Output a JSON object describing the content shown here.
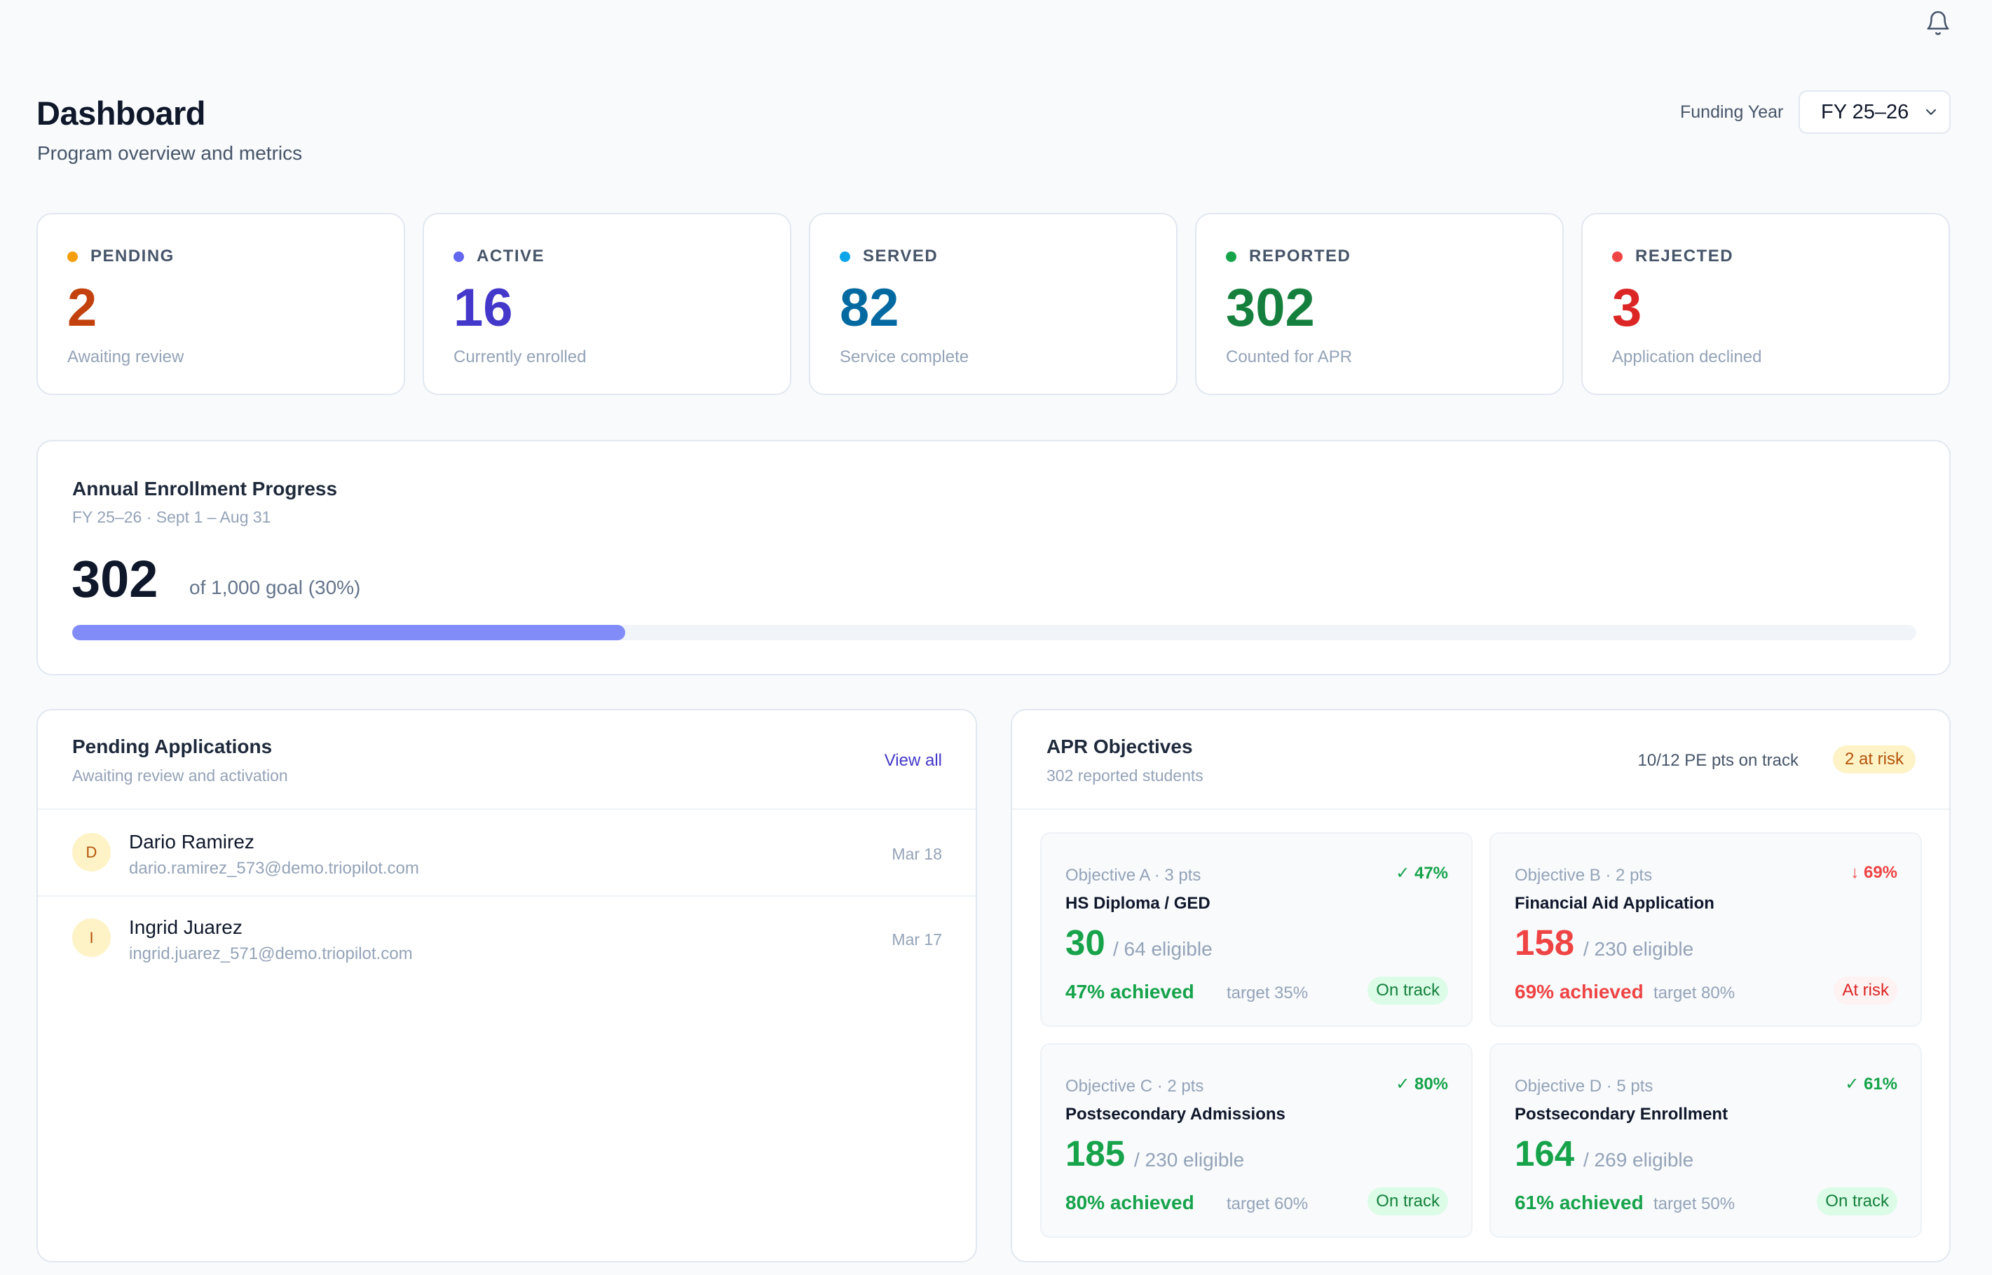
{
  "header": {
    "title": "Dashboard",
    "subtitle": "Program overview and metrics",
    "funding_year_label": "Funding Year",
    "funding_year_value": "FY 25–26",
    "icons": {
      "notifications": "bell-icon",
      "select_arrow": "chevron-down-icon"
    }
  },
  "stats": [
    {
      "label": "PENDING",
      "value": "2",
      "sub": "Awaiting review",
      "dot_color": "#f59e0b",
      "value_color": "#c2410c"
    },
    {
      "label": "ACTIVE",
      "value": "16",
      "sub": "Currently enrolled",
      "dot_color": "#6366f1",
      "value_color": "#4338ca"
    },
    {
      "label": "SERVED",
      "value": "82",
      "sub": "Service complete",
      "dot_color": "#0ea5e9",
      "value_color": "#0369a1"
    },
    {
      "label": "REPORTED",
      "value": "302",
      "sub": "Counted for APR",
      "dot_color": "#16a34a",
      "value_color": "#15803d"
    },
    {
      "label": "REJECTED",
      "value": "3",
      "sub": "Application declined",
      "dot_color": "#ef4444",
      "value_color": "#dc2626"
    }
  ],
  "progress": {
    "title": "Annual Enrollment Progress",
    "subtitle": "FY 25–26 · Sept 1 – Aug 31",
    "value": "302",
    "goal_text": "of 1,000 goal (30%)",
    "percent": 30,
    "bar_color": "#818cf8"
  },
  "pending": {
    "title": "Pending Applications",
    "subtitle": "Awaiting review and activation",
    "view_all": "View all",
    "rows": [
      {
        "initial": "D",
        "name": "Dario Ramirez",
        "email": "dario.ramirez_573@demo.triopilot.com",
        "date": "Mar 18"
      },
      {
        "initial": "I",
        "name": "Ingrid Juarez",
        "email": "ingrid.juarez_571@demo.triopilot.com",
        "date": "Mar 17"
      }
    ]
  },
  "apr": {
    "title": "APR Objectives",
    "subtitle": "302 reported students",
    "summary": "10/12 PE pts on track",
    "risk_badge": "2 at risk",
    "objectives": [
      {
        "header": "Objective A · 3 pts",
        "pct": "✓ 47%",
        "name": "HS Diploma / GED",
        "count": "30",
        "eligible": "/ 64 eligible",
        "achieved": "47% achieved",
        "sep": "·",
        "target": "target 35%",
        "status": "On track",
        "status_type": "good"
      },
      {
        "header": "Objective B · 2 pts",
        "pct": "↓ 69%",
        "name": "Financial Aid Application",
        "count": "158",
        "eligible": "/ 230 eligible",
        "achieved": "69% achieved",
        "sep": "·",
        "target": "target 80%",
        "status": "At risk",
        "status_type": "risk"
      },
      {
        "header": "Objective C · 2 pts",
        "pct": "✓ 80%",
        "name": "Postsecondary Admissions",
        "count": "185",
        "eligible": "/ 230 eligible",
        "achieved": "80% achieved",
        "sep": "·",
        "target": "target 60%",
        "status": "On track",
        "status_type": "good"
      },
      {
        "header": "Objective D · 5 pts",
        "pct": "✓ 61%",
        "name": "Postsecondary Enrollment",
        "count": "164",
        "eligible": "/ 269 eligible",
        "achieved": "61% achieved",
        "sep": "·",
        "target": "target 50%",
        "status": "On track",
        "status_type": "good"
      }
    ]
  }
}
